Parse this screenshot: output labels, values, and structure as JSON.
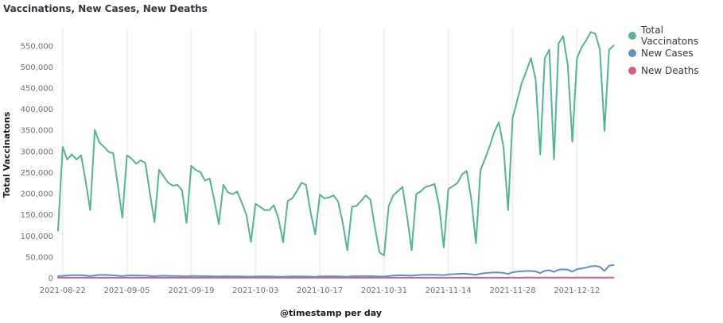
{
  "chart_data": {
    "type": "line",
    "title": "Vaccinations, New Cases, New Deaths",
    "xlabel": "@timestamp per day",
    "ylabel": "Total Vaccinatons",
    "x_tick_labels": [
      "2021-08-22",
      "2021-09-05",
      "2021-09-19",
      "2021-10-03",
      "2021-10-17",
      "2021-10-31",
      "2021-11-14",
      "2021-11-28",
      "2021-12-12"
    ],
    "y_tick_labels": [
      "0",
      "50,000",
      "100,000",
      "150,000",
      "200,000",
      "250,000",
      "300,000",
      "350,000",
      "400,000",
      "450,000",
      "500,000",
      "550,000"
    ],
    "ylim": [
      0,
      590000
    ],
    "x_start": "2021-08-21",
    "x_end": "2021-12-18",
    "grid": "vertical",
    "legend_position": "right",
    "series": [
      {
        "name": "Total Vaccinatons",
        "color": "#54b399",
        "values": [
          112000,
          310000,
          280000,
          292000,
          280000,
          290000,
          230000,
          160000,
          350000,
          320000,
          310000,
          298000,
          295000,
          220000,
          142000,
          290000,
          282000,
          270000,
          278000,
          272000,
          200000,
          132000,
          256000,
          240000,
          225000,
          218000,
          220000,
          207000,
          130000,
          265000,
          255000,
          250000,
          230000,
          235000,
          185000,
          127000,
          220000,
          202000,
          198000,
          204000,
          178000,
          150000,
          85000,
          175000,
          168000,
          160000,
          160000,
          172000,
          140000,
          84000,
          182000,
          188000,
          205000,
          225000,
          220000,
          155000,
          103000,
          197000,
          188000,
          190000,
          195000,
          180000,
          130000,
          65000,
          168000,
          170000,
          182000,
          195000,
          185000,
          120000,
          60000,
          53000,
          170000,
          195000,
          205000,
          215000,
          145000,
          65000,
          198000,
          205000,
          215000,
          218000,
          222000,
          170000,
          72000,
          210000,
          217000,
          225000,
          245000,
          253000,
          185000,
          82000,
          255000,
          282000,
          312000,
          345000,
          368000,
          310000,
          160000,
          378000,
          420000,
          462000,
          490000,
          520000,
          470000,
          292000,
          520000,
          540000,
          280000,
          555000,
          572000,
          505000,
          322000,
          520000,
          545000,
          562000,
          582000,
          578000,
          540000,
          348000,
          540000,
          550000
        ]
      },
      {
        "name": "New Cases",
        "color": "#6092c0",
        "values": [
          4000,
          4500,
          5500,
          6000,
          6200,
          6000,
          5000,
          4000,
          5500,
          6500,
          6800,
          6400,
          5800,
          4800,
          3900,
          5200,
          5600,
          5400,
          5300,
          5000,
          4400,
          3700,
          4600,
          4800,
          4500,
          4300,
          4200,
          3700,
          3200,
          4100,
          4100,
          3900,
          3800,
          3600,
          3300,
          2900,
          3600,
          3600,
          3400,
          3200,
          3000,
          2800,
          2600,
          3000,
          3100,
          3200,
          3100,
          2900,
          2700,
          2500,
          2900,
          3000,
          3100,
          3200,
          3100,
          2800,
          2500,
          3200,
          3400,
          3500,
          3500,
          3300,
          3000,
          2700,
          3500,
          3800,
          3900,
          3900,
          3700,
          3400,
          3000,
          2800,
          4200,
          5000,
          5600,
          5800,
          5400,
          5000,
          6200,
          6800,
          7200,
          7400,
          7100,
          6500,
          6000,
          7800,
          8500,
          9000,
          9500,
          9300,
          8200,
          7000,
          9500,
          11000,
          12000,
          12500,
          12400,
          11800,
          9000,
          13000,
          14500,
          15500,
          16000,
          16200,
          15000,
          11000,
          16500,
          17800,
          14000,
          19000,
          20000,
          19200,
          14500,
          20500,
          22000,
          24000,
          27000,
          28000,
          26000,
          16000,
          28500,
          30000
        ]
      },
      {
        "name": "New Deaths",
        "color": "#d36086",
        "values": [
          150,
          180,
          200,
          210,
          220,
          210,
          190,
          160,
          200,
          220,
          230,
          220,
          210,
          190,
          170,
          200,
          210,
          210,
          200,
          200,
          190,
          170,
          190,
          200,
          190,
          190,
          180,
          170,
          160,
          180,
          180,
          180,
          170,
          170,
          160,
          150,
          170,
          170,
          160,
          160,
          160,
          150,
          140,
          160,
          160,
          160,
          160,
          150,
          150,
          140,
          150,
          160,
          160,
          160,
          160,
          150,
          140,
          160,
          160,
          170,
          170,
          160,
          150,
          140,
          160,
          170,
          170,
          170,
          170,
          160,
          150,
          140,
          170,
          180,
          190,
          190,
          180,
          170,
          190,
          200,
          200,
          210,
          200,
          190,
          180,
          200,
          210,
          220,
          220,
          220,
          210,
          190,
          220,
          240,
          250,
          260,
          260,
          250,
          220,
          260,
          270,
          280,
          290,
          290,
          280,
          240,
          290,
          300,
          270,
          310,
          320,
          310,
          270,
          320,
          330,
          340,
          350,
          350,
          340,
          280,
          350,
          360
        ]
      }
    ]
  }
}
